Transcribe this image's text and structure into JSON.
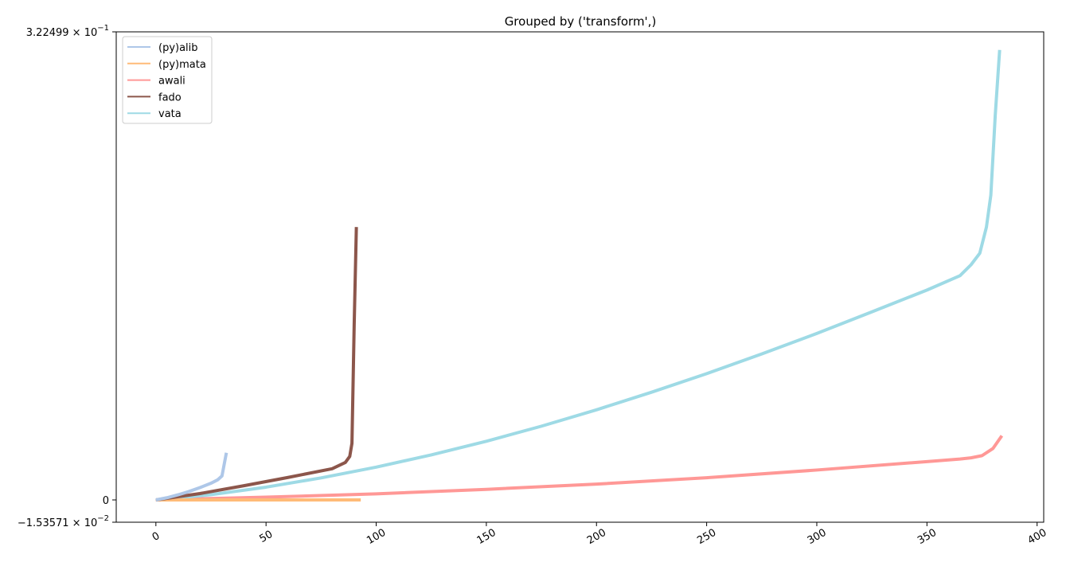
{
  "chart_data": {
    "type": "line",
    "title": "Grouped by ('transform',)",
    "xlabel": "",
    "ylabel": "",
    "xlim": [
      -18,
      403
    ],
    "ylim": [
      -0.0153571,
      0.322499
    ],
    "grid": false,
    "legend_position": "top-left",
    "x_ticks": [
      0,
      50,
      100,
      150,
      200,
      250,
      300,
      350,
      400
    ],
    "x_tick_labels": [
      "0",
      "50",
      "100",
      "150",
      "200",
      "250",
      "300",
      "350",
      "400"
    ],
    "y_ticks": [
      {
        "value": 0.322499,
        "mantissa": "3.22499",
        "exponent": "−1"
      },
      {
        "value": 0,
        "plain": "0"
      },
      {
        "value": -0.0153571,
        "mantissa": "−1.53571",
        "exponent": "−2"
      }
    ],
    "legend": [
      {
        "name": "(py)alib",
        "color": "#aec7e8"
      },
      {
        "name": "(py)mata",
        "color": "#ffbb78"
      },
      {
        "name": "awali",
        "color": "#ff9896"
      },
      {
        "name": "fado",
        "color": "#8c564b"
      },
      {
        "name": "vata",
        "color": "#9edae5"
      }
    ],
    "series": [
      {
        "name": "(py)alib",
        "color": "#aec7e8",
        "x": [
          0,
          5,
          10,
          15,
          20,
          25,
          28,
          30,
          31,
          32
        ],
        "y": [
          0,
          0.0015,
          0.0035,
          0.0058,
          0.0085,
          0.0115,
          0.0138,
          0.0165,
          0.0245,
          0.0325
        ]
      },
      {
        "name": "(py)mata",
        "color": "#ffbb78",
        "x": [
          0,
          30,
          60,
          93
        ],
        "y": [
          0,
          0,
          0,
          0
        ]
      },
      {
        "name": "awali",
        "color": "#ff9896",
        "x": [
          0,
          50,
          100,
          150,
          200,
          250,
          300,
          350,
          365,
          370,
          375,
          380,
          384
        ],
        "y": [
          0,
          0.0019,
          0.0042,
          0.0073,
          0.0109,
          0.0153,
          0.0206,
          0.0264,
          0.0282,
          0.029,
          0.0305,
          0.0355,
          0.0442
        ]
      },
      {
        "name": "fado",
        "color": "#8c564b",
        "x": [
          0,
          20,
          40,
          60,
          80,
          86,
          88,
          89,
          90,
          91
        ],
        "y": [
          0,
          0.0044,
          0.0098,
          0.0155,
          0.0215,
          0.0258,
          0.03,
          0.039,
          0.12,
          0.188
        ]
      },
      {
        "name": "vata",
        "color": "#9edae5",
        "x": [
          0,
          25,
          50,
          75,
          100,
          125,
          150,
          175,
          200,
          225,
          250,
          275,
          300,
          325,
          350,
          365,
          370,
          374,
          377,
          379,
          381,
          383
        ],
        "y": [
          0,
          0.0036,
          0.0088,
          0.0152,
          0.0226,
          0.031,
          0.0404,
          0.0508,
          0.0621,
          0.0742,
          0.087,
          0.1006,
          0.1147,
          0.1296,
          0.1446,
          0.1545,
          0.162,
          0.17,
          0.188,
          0.21,
          0.265,
          0.31
        ]
      }
    ]
  }
}
